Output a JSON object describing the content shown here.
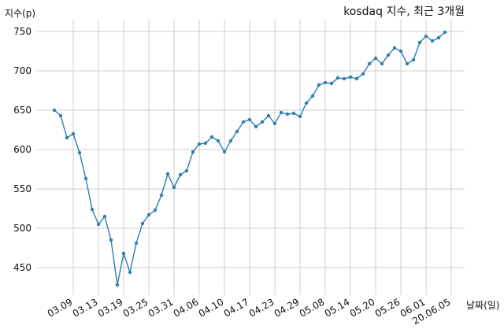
{
  "chart_data": {
    "type": "line",
    "title": "kosdaq 지수, 최근 3개월",
    "xlabel": "날짜(일)",
    "ylabel": "지수(p)",
    "ylim": [
      415,
      765
    ],
    "yticks": [
      450,
      500,
      550,
      600,
      650,
      700,
      750
    ],
    "xtick_labels": [
      "03.09",
      "03.13",
      "03.19",
      "03.25",
      "03.31",
      "04.06",
      "04.10",
      "04.17",
      "04.23",
      "04.29",
      "05.08",
      "05.14",
      "05.20",
      "05.26",
      "06.01",
      "20.06.05"
    ],
    "xtick_index": [
      3,
      7,
      11,
      15,
      19,
      23,
      27,
      31,
      35,
      39,
      43,
      47,
      51,
      55,
      59,
      63
    ],
    "grid": true,
    "series": [
      {
        "color": "#2f7fb0",
        "values": [
          650,
          643,
          615,
          620,
          596,
          563,
          524,
          505,
          515,
          485,
          428,
          468,
          444,
          481,
          506,
          517,
          523,
          542,
          569,
          552,
          568,
          573,
          597,
          607,
          608,
          616,
          611,
          597,
          611,
          623,
          635,
          638,
          629,
          635,
          643,
          633,
          647,
          645,
          646,
          642,
          659,
          668,
          682,
          685,
          684,
          691,
          690,
          692,
          690,
          696,
          709,
          716,
          709,
          720,
          729,
          725,
          709,
          714,
          736,
          744,
          738,
          742,
          749
        ]
      }
    ]
  }
}
